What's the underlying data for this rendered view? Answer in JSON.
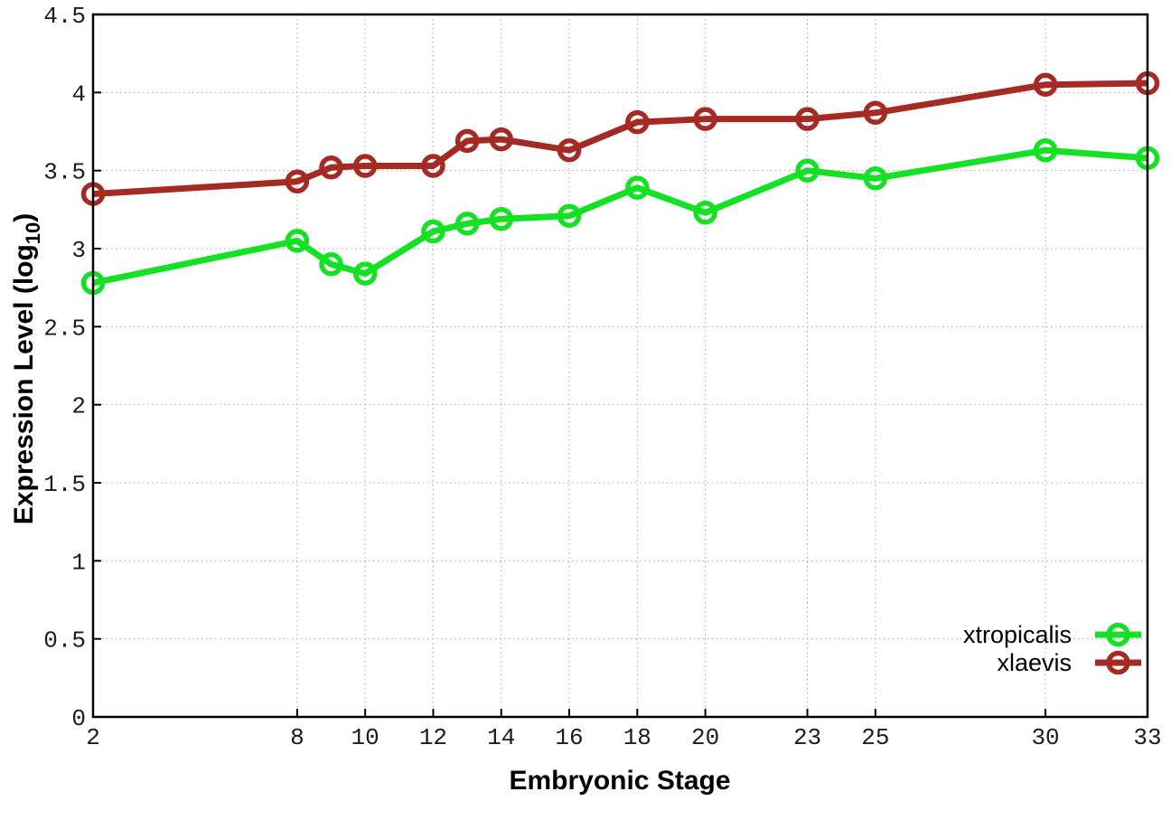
{
  "figure": {
    "background_color": "#ffffff",
    "border_color": "#000000",
    "grid_color": "#a8a8a8",
    "tick_label_color": "#1c1c1c"
  },
  "labels": {
    "xlabel": "Embryonic Stage",
    "ylabel_main": "Expression Level (log",
    "ylabel_sub": "10",
    "ylabel_end": ")"
  },
  "chart_data": {
    "type": "line",
    "title": "",
    "xlabel": "Embryonic Stage",
    "ylabel": "Expression Level (log10)",
    "xlim": [
      2,
      33
    ],
    "ylim": [
      0,
      4.5
    ],
    "grid": true,
    "legend_position": "bottom-right",
    "x_ticks": [
      2,
      8,
      10,
      12,
      14,
      16,
      18,
      20,
      23,
      25,
      30,
      33
    ],
    "x_tick_labels": [
      "2",
      "8",
      "10",
      "12",
      "14",
      "16",
      "18",
      "20",
      "23",
      "25",
      "30",
      "33"
    ],
    "y_ticks": [
      0,
      0.5,
      1,
      1.5,
      2,
      2.5,
      3,
      3.5,
      4,
      4.5
    ],
    "y_tick_labels": [
      "0",
      "0.5",
      "1",
      "1.5",
      "2",
      "2.5",
      "3",
      "3.5",
      "4",
      "4.5"
    ],
    "x": [
      2,
      8,
      9,
      10,
      12,
      13,
      14,
      16,
      18,
      20,
      23,
      25,
      30,
      33
    ],
    "series": [
      {
        "name": "xtropicalis",
        "color": "#14e123",
        "marker": "open-circle",
        "values": [
          2.78,
          3.05,
          2.9,
          2.84,
          3.11,
          3.16,
          3.19,
          3.21,
          3.39,
          3.23,
          3.5,
          3.45,
          3.63,
          3.58
        ]
      },
      {
        "name": "xlaevis",
        "color": "#a52a24",
        "marker": "open-circle",
        "values": [
          3.35,
          3.43,
          3.52,
          3.53,
          3.53,
          3.69,
          3.7,
          3.63,
          3.81,
          3.83,
          3.83,
          3.87,
          4.05,
          4.06
        ]
      }
    ]
  }
}
